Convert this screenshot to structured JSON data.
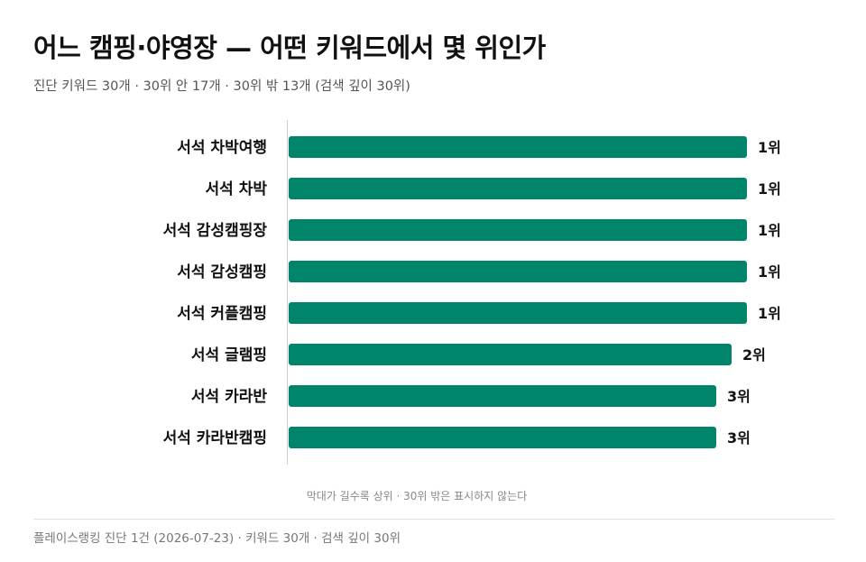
{
  "title": "어느 캠핑·야영장 — 어떤 키워드에서 몇 위인가",
  "subtitle": "진단 키워드 30개 · 30위 안 17개 · 30위 밖 13개 (검색 깊이 30위)",
  "note": "막대가 길수록 상위 · 30위 밖은 표시하지 않는다",
  "footer": "플레이스랭킹 진단 1건 (2026-07-23) · 키워드 30개 · 검색 깊이 30위",
  "colors": {
    "bar": "#00856a",
    "axis": "#cccccc"
  },
  "chart_data": {
    "type": "bar",
    "orientation": "horizontal",
    "categories": [
      "서석 차박여행",
      "서석 차박",
      "서석 감성캠핑장",
      "서석 감성캠핑",
      "서석 커플캠핑",
      "서석 글램핑",
      "서석 카라반",
      "서석 카라반캠핑"
    ],
    "values": [
      1,
      1,
      1,
      1,
      1,
      2,
      3,
      3
    ],
    "value_labels": [
      "1위",
      "1위",
      "1위",
      "1위",
      "1위",
      "2위",
      "3위",
      "3위"
    ],
    "value_meaning": "rank (1 = top, bar length decreases as rank number increases)",
    "xlim": [
      0,
      30
    ],
    "grid": false,
    "legend": "none"
  }
}
